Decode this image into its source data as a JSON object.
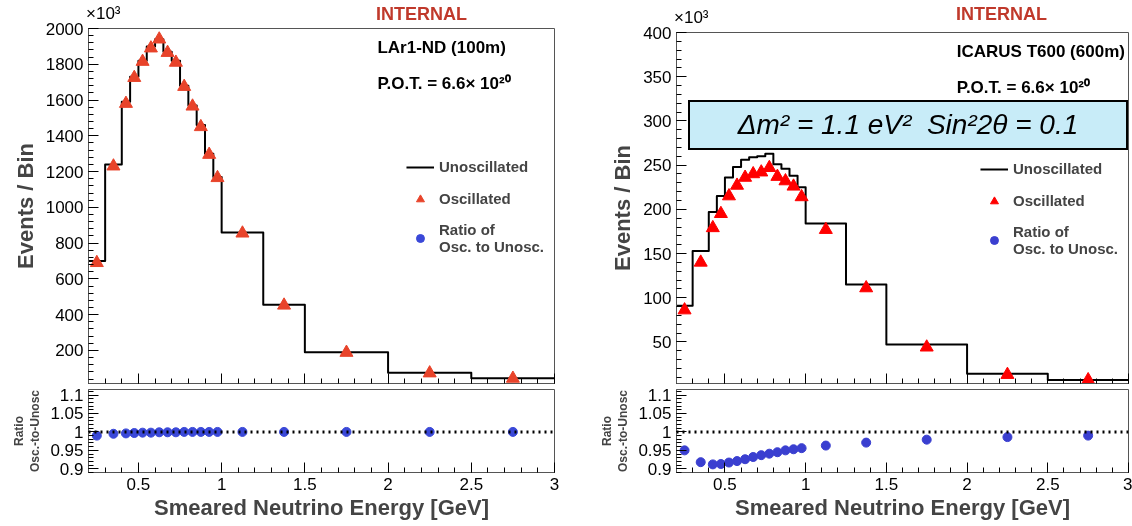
{
  "chart_data": [
    {
      "type": "histogram",
      "ylabel": "Events / Bin",
      "annotations": [
        "INTERNAL",
        "LAr1-ND (100m)",
        "P.O.T. = 6.6× 10²⁰",
        "×10³",
        "Δm² = 1.1 eV²  Sin²2θ = 0.1"
      ],
      "bins": [
        0.2,
        0.3,
        0.4,
        0.45,
        0.5,
        0.55,
        0.6,
        0.65,
        0.7,
        0.75,
        0.8,
        0.85,
        0.9,
        0.95,
        1.0,
        1.25,
        1.5,
        2,
        2.5,
        3
      ],
      "series": [
        {
          "name": "Unoscillated",
          "type": "histogram",
          "color": "#000000",
          "values": [
            700,
            1240,
            1590,
            1730,
            1820,
            1900,
            1940,
            1870,
            1820,
            1680,
            1570,
            1460,
            1300,
            1170,
            860,
            455,
            190,
            75,
            45
          ]
        },
        {
          "name": "Oscillated",
          "type": "scatter",
          "marker": "triangle",
          "color": "#e8432a",
          "x": [
            0.25,
            0.35,
            0.425,
            0.475,
            0.525,
            0.575,
            0.625,
            0.675,
            0.725,
            0.775,
            0.825,
            0.875,
            0.925,
            0.975,
            1.125,
            1.375,
            1.75,
            2.25,
            2.75
          ],
          "values": [
            690,
            1230,
            1580,
            1725,
            1815,
            1890,
            1940,
            1865,
            1810,
            1675,
            1565,
            1450,
            1295,
            1165,
            855,
            452,
            188,
            73,
            43
          ]
        }
      ],
      "xlim": [
        0.2,
        3
      ],
      "xticks": [
        0.5,
        1,
        1.5,
        2,
        2.5,
        3
      ],
      "ylim": [
        15,
        2000
      ],
      "yticks": [
        200,
        400,
        600,
        800,
        1000,
        1200,
        1400,
        1600,
        1800,
        2000
      ],
      "tick_labels": "y",
      "legend": "right",
      "grid": false
    },
    {
      "type": "scatter",
      "xlabel": "Smeared Neutrino Energy [GeV]",
      "ylabel": "Ratio\nOsc.-to-Unosc",
      "series": [
        {
          "name": "Ratio of\nOsc. to Unosc.",
          "color": "#3a48d8",
          "marker": "circle",
          "x": [
            0.25,
            0.35,
            0.425,
            0.475,
            0.525,
            0.575,
            0.625,
            0.675,
            0.725,
            0.775,
            0.825,
            0.875,
            0.925,
            0.975,
            1.125,
            1.375,
            1.75,
            2.25,
            2.75
          ],
          "values": [
            0.99,
            0.995,
            0.996,
            0.997,
            0.998,
            0.998,
            0.999,
            0.999,
            0.999,
            1,
            1,
            1,
            1,
            1,
            1,
            1,
            1,
            1,
            1
          ]
        }
      ],
      "ref_lines": [
        {
          "axis": "y",
          "value": 1,
          "color": "#000000",
          "line_style": "dotted"
        }
      ],
      "xlim": [
        0.2,
        3
      ],
      "xticks": [
        0.5,
        1,
        1.5,
        2,
        2.5,
        3
      ],
      "ylim": [
        0.89,
        1.115
      ],
      "yticks": [
        0.9,
        0.95,
        1,
        1.05,
        1.1
      ],
      "grid": false
    },
    {
      "type": "histogram",
      "ylabel": "Events / Bin",
      "annotations": [
        "INTERNAL",
        "ICARUS T600 (600m)",
        "P.O.T. = 6.6× 10²⁰",
        "×10³"
      ],
      "bins": [
        0.2,
        0.3,
        0.4,
        0.45,
        0.5,
        0.55,
        0.6,
        0.65,
        0.7,
        0.75,
        0.8,
        0.85,
        0.9,
        0.95,
        1.0,
        1.25,
        1.5,
        2,
        2.5,
        3
      ],
      "series": [
        {
          "name": "Unoscillated",
          "type": "histogram",
          "color": "#000000",
          "values": [
            91,
            153,
            197,
            215,
            236,
            248,
            256,
            259,
            260,
            263,
            251,
            246,
            238,
            225,
            184,
            115,
            47,
            14,
            7
          ]
        },
        {
          "name": "Oscillated",
          "type": "scatter",
          "marker": "triangle",
          "color": "#ff0000",
          "x": [
            0.25,
            0.35,
            0.425,
            0.475,
            0.525,
            0.575,
            0.625,
            0.675,
            0.725,
            0.775,
            0.825,
            0.875,
            0.925,
            0.975,
            1.125,
            1.375,
            1.75,
            2.25,
            2.75
          ],
          "values": [
            86,
            140,
            179,
            195,
            215,
            227,
            236,
            240,
            242,
            247,
            237,
            232,
            226,
            214,
            177,
            111,
            44,
            13,
            7
          ]
        }
      ],
      "xlim": [
        0.2,
        3
      ],
      "xticks": [
        0.5,
        1,
        1.5,
        2,
        2.5,
        3
      ],
      "ylim": [
        3,
        400
      ],
      "yticks": [
        50,
        100,
        150,
        200,
        250,
        300,
        350,
        400
      ],
      "tick_labels": "y",
      "legend": "right",
      "grid": false
    },
    {
      "type": "scatter",
      "xlabel": "Smeared Neutrino Energy [GeV]",
      "ylabel": "Ratio\nOsc.-to-Unosc",
      "series": [
        {
          "name": "Ratio of\nOsc. to Unosc.",
          "color": "#3a3fd0",
          "marker": "circle",
          "x": [
            0.25,
            0.35,
            0.425,
            0.475,
            0.525,
            0.575,
            0.625,
            0.675,
            0.725,
            0.775,
            0.825,
            0.875,
            0.925,
            0.975,
            1.125,
            1.375,
            1.75,
            2.25,
            2.75
          ],
          "values": [
            0.95,
            0.918,
            0.912,
            0.913,
            0.917,
            0.921,
            0.926,
            0.932,
            0.937,
            0.941,
            0.945,
            0.95,
            0.953,
            0.956,
            0.963,
            0.971,
            0.979,
            0.986,
            0.99
          ]
        }
      ],
      "ref_lines": [
        {
          "axis": "y",
          "value": 1,
          "color": "#000000",
          "line_style": "dotted"
        }
      ],
      "xlim": [
        0.2,
        3
      ],
      "xticks": [
        0.5,
        1,
        1.5,
        2,
        2.5,
        3
      ],
      "ylim": [
        0.89,
        1.115
      ],
      "yticks": [
        0.9,
        0.95,
        1,
        1.05,
        1.1
      ],
      "grid": false
    }
  ]
}
